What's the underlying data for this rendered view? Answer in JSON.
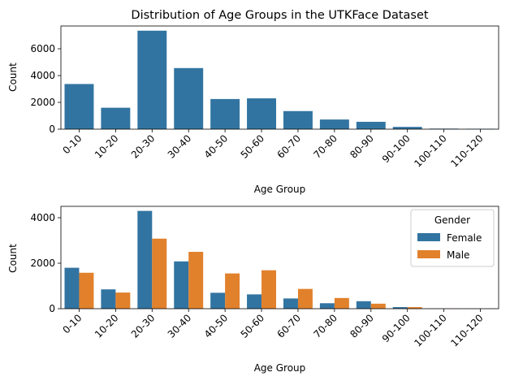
{
  "chart_data": [
    {
      "type": "bar",
      "title": "Distribution of Age Groups in the UTKFace Dataset",
      "xlabel": "Age Group",
      "ylabel": "Count",
      "categories": [
        "0-10",
        "10-20",
        "20-30",
        "30-40",
        "40-50",
        "50-60",
        "60-70",
        "70-80",
        "80-90",
        "90-100",
        "100-110",
        "110-120"
      ],
      "values": [
        3370,
        1600,
        7350,
        4560,
        2250,
        2300,
        1350,
        720,
        550,
        170,
        40,
        30
      ],
      "yticks": [
        0,
        2000,
        4000,
        6000
      ],
      "ylim": [
        0,
        7700
      ],
      "color": "#3274a1",
      "grid": false
    },
    {
      "type": "bar",
      "title": "",
      "xlabel": "Age Group",
      "ylabel": "Count",
      "categories": [
        "0-10",
        "10-20",
        "20-30",
        "30-40",
        "40-50",
        "50-60",
        "60-70",
        "70-80",
        "80-90",
        "90-100",
        "100-110",
        "110-120"
      ],
      "series": [
        {
          "name": "Female",
          "color": "#3274a1",
          "values": [
            1800,
            850,
            4300,
            2080,
            700,
            630,
            450,
            240,
            330,
            70,
            10,
            5
          ]
        },
        {
          "name": "Male",
          "color": "#e1812c",
          "values": [
            1580,
            710,
            3080,
            2500,
            1550,
            1690,
            870,
            470,
            220,
            70,
            10,
            5
          ]
        }
      ],
      "yticks": [
        0,
        2000,
        4000
      ],
      "ylim": [
        0,
        4500
      ],
      "legend": {
        "title": "Gender",
        "placement": "top-right"
      },
      "grid": false
    }
  ]
}
